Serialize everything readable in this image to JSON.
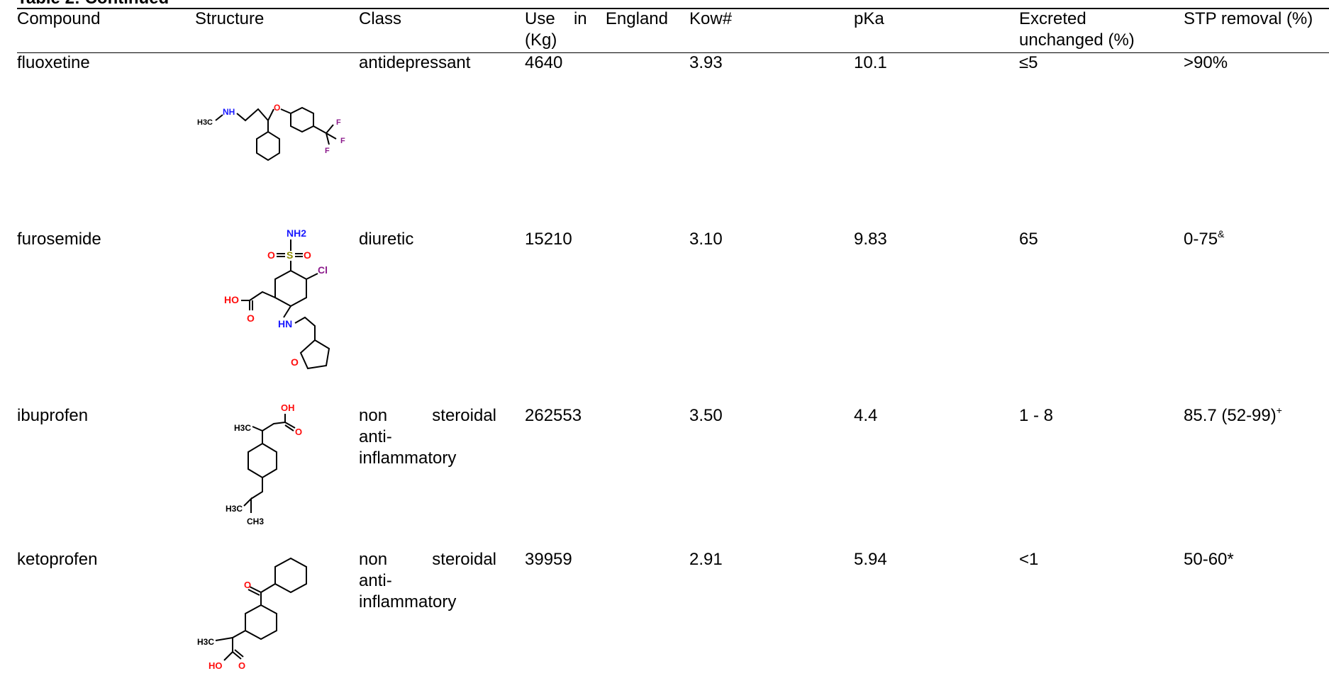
{
  "caption": "Table 2: Continued",
  "headers": {
    "compound": "Compound",
    "structure": "Structure",
    "class": "Class",
    "use_line1_words": [
      "Use",
      "in",
      "England"
    ],
    "use_line2": "(Kg)",
    "kow": "Kow#",
    "pka": "pKa",
    "excreted_line1": "Excreted",
    "excreted_line2": "unchanged (%)",
    "stp": "STP removal (%)"
  },
  "rows": [
    {
      "compound": "fluoxetine",
      "class_lines": [
        "antidepressant"
      ],
      "use": "4640",
      "kow": "3.93",
      "pka": "10.1",
      "excreted": "≤5",
      "stp": ">90%",
      "stp_sup": "",
      "structure_icon": "fluoxetine-structure"
    },
    {
      "compound": "furosemide",
      "class_lines": [
        "diuretic"
      ],
      "use": "15210",
      "kow": "3.10",
      "pka": "9.83",
      "excreted": "65",
      "stp": "0-75",
      "stp_sup": "&",
      "structure_icon": "furosemide-structure"
    },
    {
      "compound": "ibuprofen",
      "class_words": [
        "non",
        "steroidal"
      ],
      "class_lines": [
        "anti-",
        "inflammatory"
      ],
      "use": "262553",
      "kow": "3.50",
      "pka": "4.4",
      "excreted": "1 - 8",
      "stp": "85.7 (52-99)",
      "stp_sup": "+",
      "structure_icon": "ibuprofen-structure"
    },
    {
      "compound": "ketoprofen",
      "class_words": [
        "non",
        "steroidal"
      ],
      "class_lines": [
        "anti-",
        "inflammatory"
      ],
      "use": "39959",
      "kow": "2.91",
      "pka": "5.94",
      "excreted": "<1",
      "stp": "50-60*",
      "stp_sup": "",
      "structure_icon": "ketoprofen-structure"
    }
  ],
  "atoms": {
    "ch3": "H3C",
    "nh": "NH",
    "o": "O",
    "f": "F",
    "nh2": "NH2",
    "s": "S",
    "cl": "Cl",
    "ho": "HO",
    "hn": "HN",
    "oh": "OH",
    "ch3_sub": "CH3"
  },
  "colors": {
    "nitrogen": "#1a1aff",
    "oxygen": "#ff0d0d",
    "halogen": "#8b1a8b",
    "sulfur": "#8b8b00"
  }
}
